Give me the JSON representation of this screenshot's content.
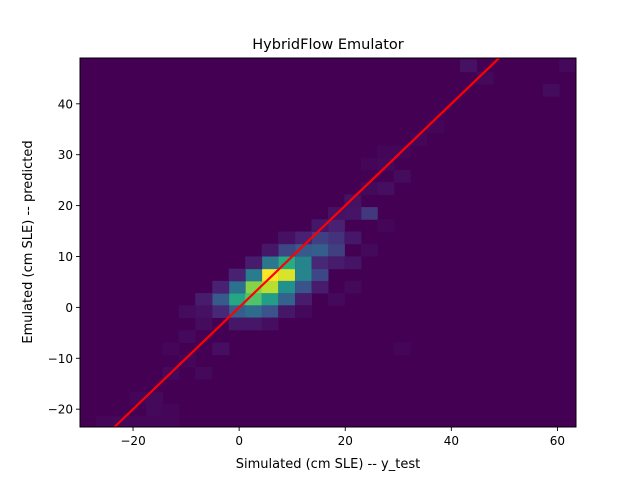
{
  "chart_data": {
    "type": "heatmap",
    "title": "HybridFlow Emulator",
    "xlabel": "Simulated (cm SLE) -- y_test",
    "ylabel": "Emulated (cm SLE) -- predicted",
    "xlim": [
      -30,
      63.5
    ],
    "ylim": [
      -23.5,
      49
    ],
    "x_ticks": [
      -20,
      0,
      20,
      40,
      60
    ],
    "y_ticks": [
      -20,
      -10,
      0,
      10,
      20,
      30,
      40
    ],
    "grid": false,
    "colormap": "viridis",
    "background_color": "#440154",
    "bins": {
      "x_edges_start": -30,
      "x_bin_width": 3.117,
      "x_count": 30,
      "y_edges_start": -23.5,
      "y_bin_width": 2.4167,
      "y_count": 30
    },
    "counts": [
      {
        "x": 5.8,
        "y": 6.4,
        "v": 1.0
      },
      {
        "x": 8.9,
        "y": 6.4,
        "v": 0.95
      },
      {
        "x": 2.7,
        "y": 4.0,
        "v": 0.82
      },
      {
        "x": 5.8,
        "y": 4.0,
        "v": 0.9
      },
      {
        "x": -0.4,
        "y": 1.6,
        "v": 0.6
      },
      {
        "x": 2.7,
        "y": 1.6,
        "v": 0.72
      },
      {
        "x": 5.8,
        "y": 1.6,
        "v": 0.55
      },
      {
        "x": 8.9,
        "y": 8.8,
        "v": 0.62
      },
      {
        "x": 12.1,
        "y": 8.8,
        "v": 0.45
      },
      {
        "x": 2.7,
        "y": 6.4,
        "v": 0.42
      },
      {
        "x": 8.9,
        "y": 4.0,
        "v": 0.5
      },
      {
        "x": 12.1,
        "y": 6.4,
        "v": 0.45
      },
      {
        "x": 5.8,
        "y": 8.8,
        "v": 0.4
      },
      {
        "x": -0.4,
        "y": 4.0,
        "v": 0.38
      },
      {
        "x": -3.5,
        "y": 1.6,
        "v": 0.28
      },
      {
        "x": -0.4,
        "y": -0.8,
        "v": 0.3
      },
      {
        "x": 2.7,
        "y": -0.8,
        "v": 0.35
      },
      {
        "x": 5.8,
        "y": -0.8,
        "v": 0.25
      },
      {
        "x": 8.9,
        "y": 1.6,
        "v": 0.32
      },
      {
        "x": 12.1,
        "y": 4.0,
        "v": 0.26
      },
      {
        "x": 15.2,
        "y": 6.4,
        "v": 0.22
      },
      {
        "x": 15.2,
        "y": 11.3,
        "v": 0.3
      },
      {
        "x": 12.1,
        "y": 11.3,
        "v": 0.28
      },
      {
        "x": 8.9,
        "y": 11.3,
        "v": 0.22
      },
      {
        "x": 18.3,
        "y": 11.3,
        "v": 0.2
      },
      {
        "x": 18.3,
        "y": 13.7,
        "v": 0.17
      },
      {
        "x": 15.2,
        "y": 13.7,
        "v": 0.2
      },
      {
        "x": 12.1,
        "y": 13.7,
        "v": 0.12
      },
      {
        "x": 18.3,
        "y": 16.1,
        "v": 0.12
      },
      {
        "x": 15.2,
        "y": 16.1,
        "v": 0.08
      },
      {
        "x": 21.4,
        "y": 13.7,
        "v": 0.08
      },
      {
        "x": 24.5,
        "y": 18.5,
        "v": 0.18
      },
      {
        "x": 21.4,
        "y": 18.5,
        "v": 0.07
      },
      {
        "x": 18.3,
        "y": 18.5,
        "v": 0.06
      },
      {
        "x": 21.4,
        "y": 21.0,
        "v": 0.06
      },
      {
        "x": 15.2,
        "y": 8.8,
        "v": 0.14
      },
      {
        "x": 18.3,
        "y": 8.8,
        "v": 0.1
      },
      {
        "x": 21.4,
        "y": 8.8,
        "v": 0.07
      },
      {
        "x": 15.2,
        "y": 4.0,
        "v": 0.1
      },
      {
        "x": 12.1,
        "y": 1.6,
        "v": 0.1
      },
      {
        "x": 8.9,
        "y": -0.8,
        "v": 0.08
      },
      {
        "x": -0.4,
        "y": 6.4,
        "v": 0.12
      },
      {
        "x": -3.5,
        "y": 4.0,
        "v": 0.12
      },
      {
        "x": -6.7,
        "y": 1.6,
        "v": 0.1
      },
      {
        "x": -6.7,
        "y": -0.8,
        "v": 0.06
      },
      {
        "x": -3.5,
        "y": -0.8,
        "v": 0.14
      },
      {
        "x": -0.4,
        "y": -3.2,
        "v": 0.08
      },
      {
        "x": 2.7,
        "y": -3.2,
        "v": 0.08
      },
      {
        "x": 5.8,
        "y": -3.2,
        "v": 0.05
      },
      {
        "x": 2.7,
        "y": 8.8,
        "v": 0.1
      },
      {
        "x": 5.8,
        "y": 11.3,
        "v": 0.08
      },
      {
        "x": 8.9,
        "y": 13.7,
        "v": 0.06
      },
      {
        "x": -9.8,
        "y": -0.8,
        "v": 0.04
      },
      {
        "x": -3.5,
        "y": -8.1,
        "v": 0.05
      },
      {
        "x": -6.7,
        "y": -3.2,
        "v": 0.04
      },
      {
        "x": -9.8,
        "y": -5.7,
        "v": 0.03
      },
      {
        "x": -12.9,
        "y": -12.9,
        "v": 0.03
      },
      {
        "x": -16.0,
        "y": -17.8,
        "v": 0.03
      },
      {
        "x": -19.1,
        "y": -17.8,
        "v": 0.02
      },
      {
        "x": -16.0,
        "y": -20.2,
        "v": 0.03
      },
      {
        "x": -12.9,
        "y": -20.2,
        "v": 0.02
      },
      {
        "x": -25.4,
        "y": -22.6,
        "v": 0.02
      },
      {
        "x": -22.3,
        "y": -22.6,
        "v": 0.03
      },
      {
        "x": -19.1,
        "y": -22.6,
        "v": 0.02
      },
      {
        "x": -16.0,
        "y": -22.6,
        "v": 0.02
      },
      {
        "x": -12.9,
        "y": -22.6,
        "v": 0.02
      },
      {
        "x": -6.7,
        "y": -12.9,
        "v": 0.03
      },
      {
        "x": -9.8,
        "y": -10.5,
        "v": 0.02
      },
      {
        "x": -12.9,
        "y": -8.1,
        "v": 0.02
      },
      {
        "x": 27.6,
        "y": 23.4,
        "v": 0.05
      },
      {
        "x": 24.5,
        "y": 23.4,
        "v": 0.03
      },
      {
        "x": 30.7,
        "y": 25.8,
        "v": 0.04
      },
      {
        "x": 27.6,
        "y": 28.2,
        "v": 0.03
      },
      {
        "x": 24.5,
        "y": 28.2,
        "v": 0.02
      },
      {
        "x": 27.6,
        "y": 30.6,
        "v": 0.02
      },
      {
        "x": 33.8,
        "y": 33.0,
        "v": 0.02
      },
      {
        "x": 37.0,
        "y": 35.5,
        "v": 0.02
      },
      {
        "x": 30.7,
        "y": 30.6,
        "v": 0.02
      },
      {
        "x": 27.6,
        "y": 16.1,
        "v": 0.02
      },
      {
        "x": 43.2,
        "y": 47.5,
        "v": 0.06
      },
      {
        "x": 46.3,
        "y": 45.1,
        "v": 0.03
      },
      {
        "x": 58.8,
        "y": 42.7,
        "v": 0.04
      },
      {
        "x": 61.9,
        "y": 47.5,
        "v": 0.03
      },
      {
        "x": 30.7,
        "y": -8.1,
        "v": 0.02
      },
      {
        "x": 21.4,
        "y": 4.0,
        "v": 0.03
      },
      {
        "x": 18.3,
        "y": 1.6,
        "v": 0.03
      },
      {
        "x": 24.5,
        "y": 11.3,
        "v": 0.03
      },
      {
        "x": 12.1,
        "y": -0.8,
        "v": 0.03
      }
    ],
    "fit_line": {
      "slope": 1.0,
      "intercept": 0.0,
      "color": "#ff0000"
    }
  }
}
